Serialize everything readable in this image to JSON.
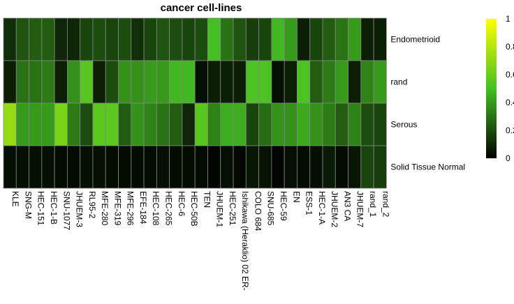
{
  "chart_data": {
    "type": "heatmap",
    "title": "cancer cell-lines",
    "rows": [
      "Endometrioid",
      "rand",
      "Serous",
      "Solid Tissue Normal"
    ],
    "columns": [
      "KLE",
      "SNG-M",
      "HEC-151",
      "HEC-1-B",
      "SNU-1077",
      "JHUEM-3",
      "RL95-2",
      "MFE-280",
      "MFE-319",
      "MFE-296",
      "EFE-184",
      "HEC-108",
      "HEC-265",
      "HEC-6",
      "HEC-50B",
      "TEN",
      "JHUEM-1",
      "HEC-251",
      "Ishikawa (Heraklio) 02 ER-",
      "COLO 684",
      "SNU-685",
      "HEC-59",
      "EN",
      "ESS-1",
      "HEC-1-A",
      "JHUEM-2",
      "AN3 CA",
      "JHUEM-7",
      "rand_1",
      "rand_2"
    ],
    "values": [
      [
        0.12,
        0.22,
        0.24,
        0.24,
        0.1,
        0.1,
        0.18,
        0.2,
        0.18,
        0.2,
        0.12,
        0.18,
        0.22,
        0.2,
        0.18,
        0.2,
        0.5,
        0.3,
        0.22,
        0.16,
        0.18,
        0.48,
        0.4,
        0.08,
        0.18,
        0.24,
        0.3,
        0.4,
        0.08,
        0.08
      ],
      [
        0.08,
        0.3,
        0.3,
        0.32,
        0.08,
        0.38,
        0.55,
        0.08,
        0.2,
        0.38,
        0.38,
        0.4,
        0.4,
        0.48,
        0.48,
        0.04,
        0.08,
        0.08,
        0.08,
        0.52,
        0.52,
        0.04,
        0.08,
        0.52,
        0.24,
        0.32,
        0.4,
        0.08,
        0.34,
        0.4
      ],
      [
        0.72,
        0.4,
        0.4,
        0.4,
        0.64,
        0.32,
        0.2,
        0.56,
        0.56,
        0.24,
        0.38,
        0.34,
        0.3,
        0.24,
        0.1,
        0.55,
        0.34,
        0.45,
        0.45,
        0.18,
        0.28,
        0.38,
        0.38,
        0.44,
        0.38,
        0.32,
        0.24,
        0.34,
        0.2,
        0.18
      ],
      [
        0.04,
        0.04,
        0.04,
        0.04,
        0.03,
        0.03,
        0.04,
        0.04,
        0.03,
        0.03,
        0.03,
        0.03,
        0.04,
        0.03,
        0.03,
        0.03,
        0.01,
        0.04,
        0.02,
        0.06,
        0.05,
        0.01,
        0.04,
        0.03,
        0.04,
        0.07,
        0.03,
        0.06,
        0.18,
        0.16
      ]
    ],
    "legend": {
      "ticks": [
        "0",
        "0.2",
        "0.4",
        "0.6",
        "0.8",
        "1"
      ],
      "range": [
        0,
        1
      ],
      "colors": [
        "#000000",
        "#44c022",
        "#ffff00"
      ]
    },
    "grid_color": "#888888"
  }
}
